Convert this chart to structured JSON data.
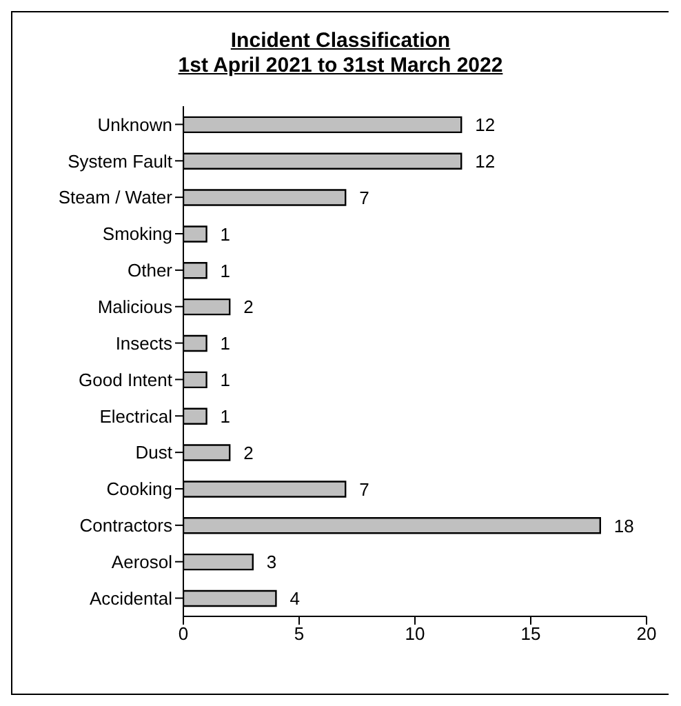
{
  "chart_data": {
    "type": "bar",
    "orientation": "horizontal",
    "title": "Incident Classification",
    "subtitle": "1st April  2021 to 31st March 2022",
    "categories": [
      "Unknown",
      "System Fault",
      "Steam / Water",
      "Smoking",
      "Other",
      "Malicious",
      "Insects",
      "Good Intent",
      "Electrical",
      "Dust",
      "Cooking",
      "Contractors",
      "Aerosol",
      "Accidental"
    ],
    "values": [
      12,
      12,
      7,
      1,
      1,
      2,
      1,
      1,
      1,
      2,
      7,
      18,
      3,
      4
    ],
    "color": "#c0c0c0",
    "xlim": [
      0,
      20
    ],
    "xticks": [
      0,
      5,
      10,
      15,
      20
    ],
    "data_labels": true,
    "grid": false,
    "legend": false
  }
}
